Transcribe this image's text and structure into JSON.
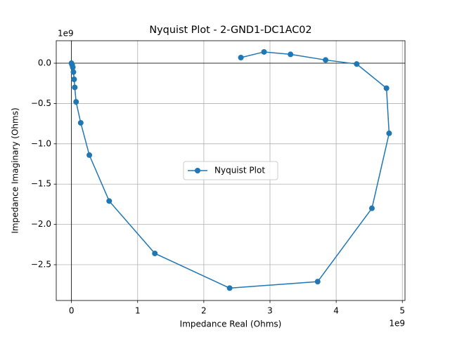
{
  "chart_data": {
    "type": "line",
    "title": "Nyquist Plot - 2-GND1-DC1AC02",
    "x_label": "Impedance Real (Ohms)",
    "y_label": "Impedance Imaginary (Ohms)",
    "x_offset_label": "1e9",
    "y_offset_label": "1e9",
    "x": [
      0,
      0.01,
      0.02,
      0.03,
      0.04,
      0.05,
      0.07,
      0.14,
      0.27,
      0.57,
      1.26,
      2.39,
      3.72,
      4.54,
      4.8,
      4.76,
      4.31,
      3.84,
      3.31,
      2.91,
      2.56
    ],
    "series": [
      {
        "name": "Nyquist Plot",
        "color": "#1f77b4",
        "values": [
          0,
          -0.02,
          -0.05,
          -0.11,
          -0.2,
          -0.3,
          -0.48,
          -0.74,
          -1.14,
          -1.71,
          -2.36,
          -2.79,
          -2.71,
          -1.8,
          -0.87,
          -0.31,
          -0.01,
          0.04,
          0.11,
          0.14,
          0.07
        ]
      }
    ],
    "xlim": [
      -0.23,
      5.04
    ],
    "ylim": [
      -2.944,
      0.279
    ],
    "xticks": [
      0,
      1,
      2,
      3,
      4,
      5
    ],
    "yticks": [
      {
        "value": 0,
        "label": "0.0"
      },
      {
        "value": -0.5,
        "label": "−0.5"
      },
      {
        "value": -1,
        "label": "−1.0"
      },
      {
        "value": -1.5,
        "label": "−1.5"
      },
      {
        "value": -2,
        "label": "−2.0"
      },
      {
        "value": -2.5,
        "label": "−2.5"
      }
    ],
    "axhline": 0,
    "axvline": 0,
    "grid": true,
    "legend": "center"
  }
}
